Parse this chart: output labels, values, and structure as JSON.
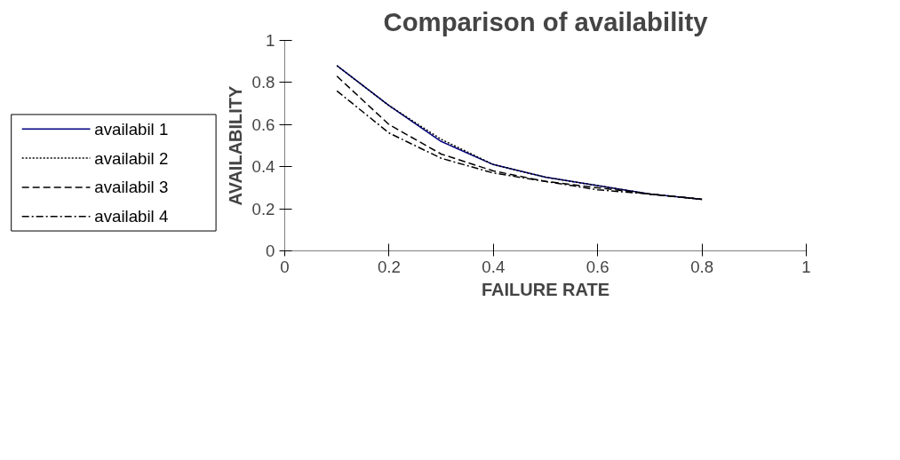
{
  "chart_data": {
    "type": "line",
    "title": "Comparison of availability",
    "xlabel": "FAILURE RATE",
    "ylabel": "AVAILABILITY",
    "x": [
      0.1,
      0.2,
      0.3,
      0.4,
      0.5,
      0.6,
      0.7,
      0.8
    ],
    "series": [
      {
        "name": "availabil 1",
        "color": "#000080",
        "line_style": "solid",
        "values": [
          0.88,
          0.69,
          0.52,
          0.41,
          0.35,
          0.31,
          0.27,
          0.245
        ]
      },
      {
        "name": "availabil 2",
        "color": "#000000",
        "line_style": "dotted",
        "values": [
          0.88,
          0.69,
          0.53,
          0.41,
          0.35,
          0.31,
          0.27,
          0.245
        ]
      },
      {
        "name": "availabil 3",
        "color": "#000000",
        "line_style": "dashed",
        "values": [
          0.83,
          0.6,
          0.46,
          0.38,
          0.33,
          0.3,
          0.27,
          0.245
        ]
      },
      {
        "name": "availabil 4",
        "color": "#000000",
        "line_style": "dashdot",
        "values": [
          0.76,
          0.56,
          0.44,
          0.37,
          0.33,
          0.29,
          0.27,
          0.245
        ]
      }
    ],
    "xlim": [
      0,
      1
    ],
    "ylim": [
      0,
      1
    ],
    "xticks": [
      0,
      0.2,
      0.4,
      0.6,
      0.8,
      1
    ],
    "yticks": [
      0,
      0.2,
      0.4,
      0.6,
      0.8,
      1
    ],
    "grid": false,
    "legend": "left"
  }
}
